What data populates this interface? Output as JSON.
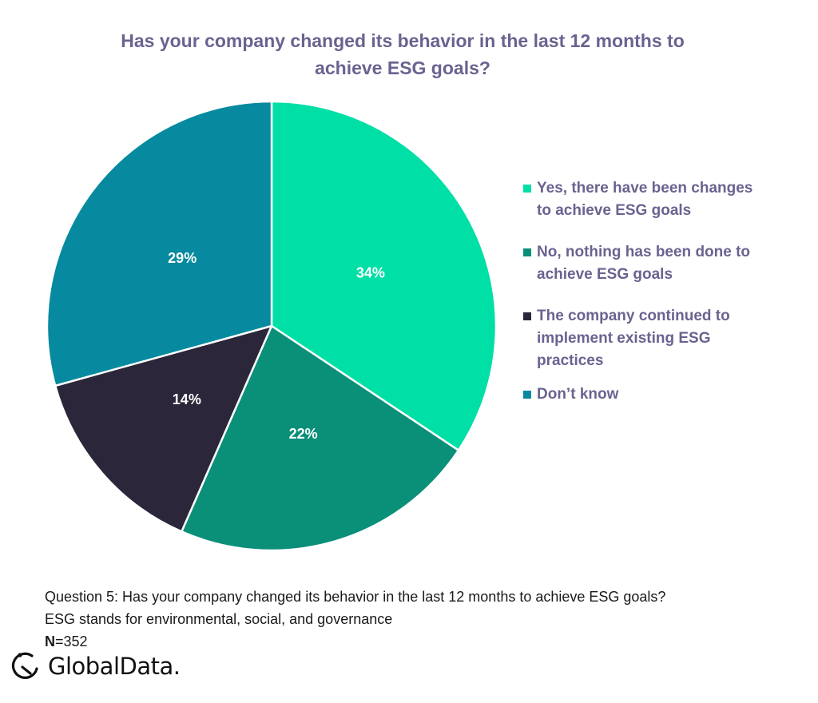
{
  "chart_data": {
    "type": "pie",
    "title": "Has your company changed its behavior in the last 12 months to achieve ESG goals?",
    "title_lines": [
      "Has your company changed its behavior in the last 12 months to",
      "achieve ESG goals?"
    ],
    "start": "top",
    "direction": "clockwise",
    "legend_placement": "right",
    "slices": [
      {
        "label": "Yes, there have been changes to achieve ESG goals",
        "label_lines": [
          "Yes, there have been changes",
          "to achieve ESG goals"
        ],
        "value": 34,
        "value_label": "34%",
        "color": "#00dfa6"
      },
      {
        "label": "No, nothing has been done to achieve ESG goals",
        "label_lines": [
          "No, nothing has been done to",
          "achieve ESG goals"
        ],
        "value": 22,
        "value_label": "22%",
        "color": "#0a8f79"
      },
      {
        "label": "The company continued to implement existing ESG practices",
        "label_lines": [
          "The company continued to",
          "implement existing ESG",
          "practices"
        ],
        "value": 14,
        "value_label": "14%",
        "color": "#2b2639"
      },
      {
        "label": "Don’t know",
        "label_lines": [
          "Don’t know"
        ],
        "value": 29,
        "value_label": "29%",
        "color": "#078a9f"
      }
    ]
  },
  "footnote": {
    "question": "Question 5: Has your company changed its behavior in the last 12 months to achieve ESG goals?",
    "definition": "ESG stands for environmental, social, and governance",
    "n_label": "N",
    "n_value": "=352"
  },
  "logo": {
    "text": "GlobalData.",
    "icon": "globaldata-logo-icon"
  },
  "colors": {
    "title": "#6a6390",
    "legend_text": "#6a6390"
  }
}
